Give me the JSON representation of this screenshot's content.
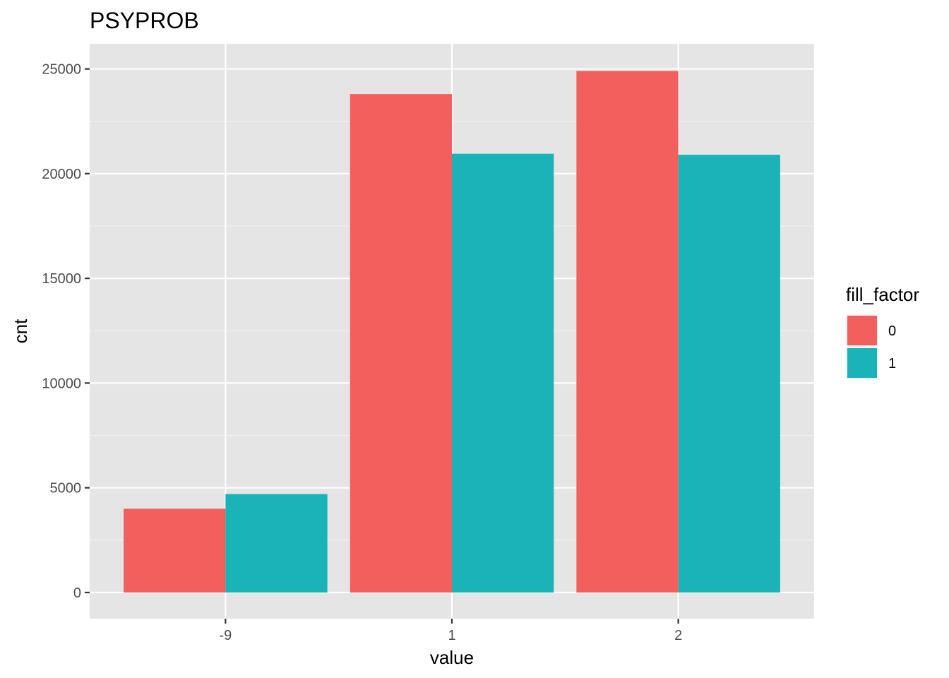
{
  "chart_data": {
    "type": "bar",
    "title": "PSYPROB",
    "xlabel": "value",
    "ylabel": "cnt",
    "categories": [
      "-9",
      "1",
      "2"
    ],
    "series": [
      {
        "name": "0",
        "values": [
          4000,
          23800,
          24900
        ],
        "color": "#F25F5C"
      },
      {
        "name": "1",
        "values": [
          4700,
          20950,
          20900
        ],
        "color": "#1AB4B8"
      }
    ],
    "ylim": [
      -1250,
      26200
    ],
    "yticks": [
      0,
      5000,
      10000,
      15000,
      20000,
      25000
    ],
    "ytick_labels": [
      "0",
      "5000",
      "10000",
      "15000",
      "20000",
      "25000"
    ],
    "grid": true,
    "panel_background": "#E5E5E5",
    "legend": {
      "title": "fill_factor",
      "position": "right",
      "entries": [
        "0",
        "1"
      ]
    }
  }
}
